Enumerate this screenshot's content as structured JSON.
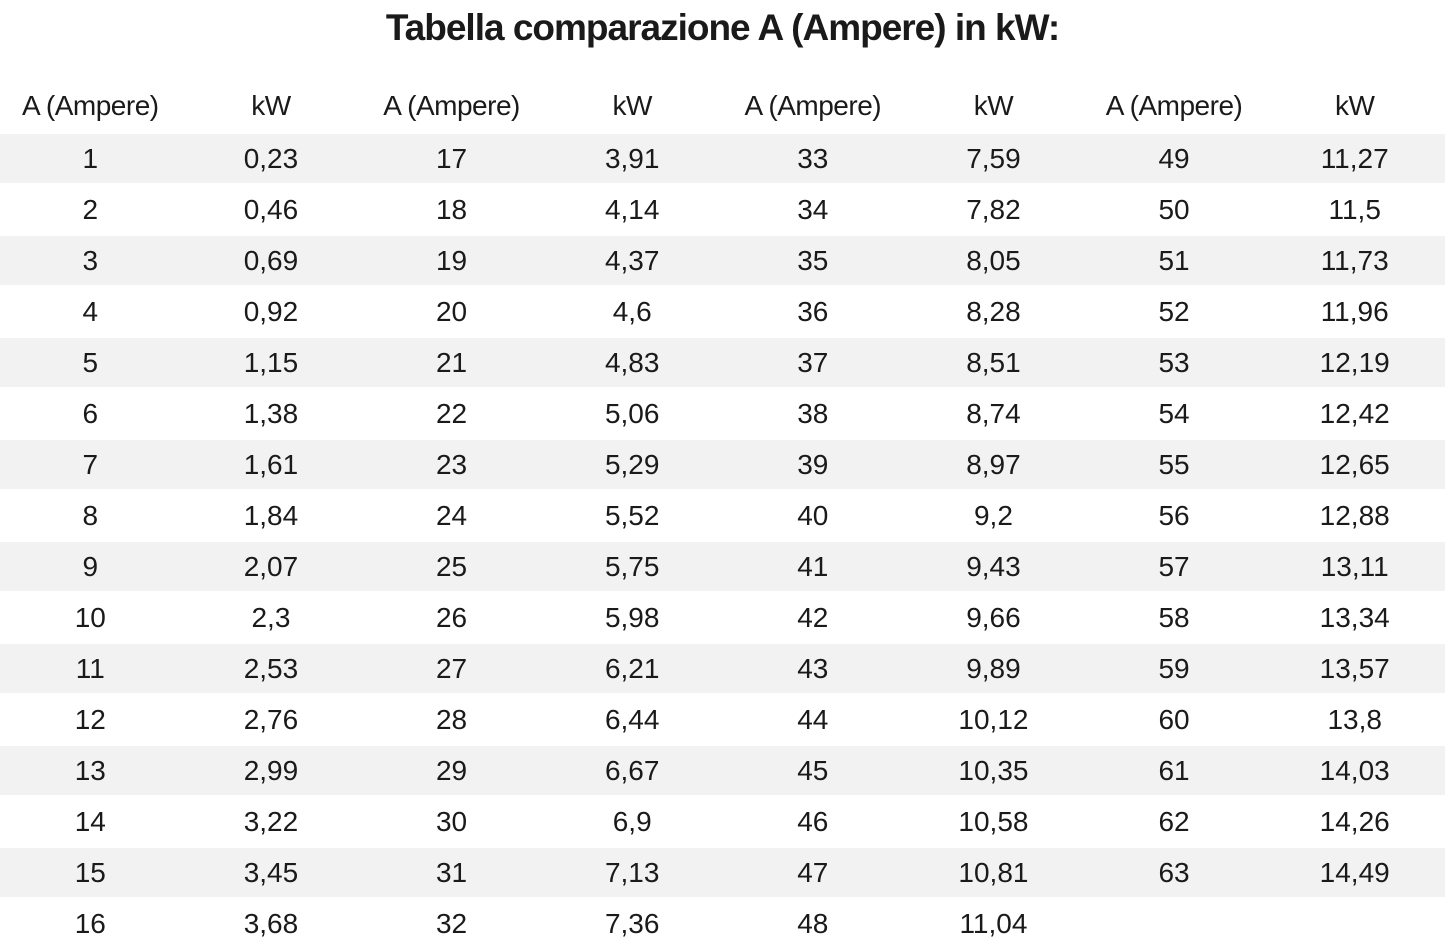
{
  "title": "Tabella comparazione A (Ampere) in kW:",
  "colors": {
    "stripe": "#f2f2f2",
    "background": "#ffffff",
    "text": "#1a1a1a"
  },
  "chart_data": {
    "type": "table",
    "title": "Tabella comparazione A (Ampere) in kW:",
    "columns": [
      "A (Ampere)",
      "kW",
      "A (Ampere)",
      "kW",
      "A (Ampere)",
      "kW",
      "A (Ampere)",
      "kW"
    ],
    "decimal_separator": ",",
    "conversion_factor_kw_per_ampere": 0.23,
    "layout": "zebra-striped, 4 ampere/kW column pairs, no vertical gridlines",
    "rows": [
      [
        "1",
        "0,23",
        "17",
        "3,91",
        "33",
        "7,59",
        "49",
        "11,27"
      ],
      [
        "2",
        "0,46",
        "18",
        "4,14",
        "34",
        "7,82",
        "50",
        "11,5"
      ],
      [
        "3",
        "0,69",
        "19",
        "4,37",
        "35",
        "8,05",
        "51",
        "11,73"
      ],
      [
        "4",
        "0,92",
        "20",
        "4,6",
        "36",
        "8,28",
        "52",
        "11,96"
      ],
      [
        "5",
        "1,15",
        "21",
        "4,83",
        "37",
        "8,51",
        "53",
        "12,19"
      ],
      [
        "6",
        "1,38",
        "22",
        "5,06",
        "38",
        "8,74",
        "54",
        "12,42"
      ],
      [
        "7",
        "1,61",
        "23",
        "5,29",
        "39",
        "8,97",
        "55",
        "12,65"
      ],
      [
        "8",
        "1,84",
        "24",
        "5,52",
        "40",
        "9,2",
        "56",
        "12,88"
      ],
      [
        "9",
        "2,07",
        "25",
        "5,75",
        "41",
        "9,43",
        "57",
        "13,11"
      ],
      [
        "10",
        "2,3",
        "26",
        "5,98",
        "42",
        "9,66",
        "58",
        "13,34"
      ],
      [
        "11",
        "2,53",
        "27",
        "6,21",
        "43",
        "9,89",
        "59",
        "13,57"
      ],
      [
        "12",
        "2,76",
        "28",
        "6,44",
        "44",
        "10,12",
        "60",
        "13,8"
      ],
      [
        "13",
        "2,99",
        "29",
        "6,67",
        "45",
        "10,35",
        "61",
        "14,03"
      ],
      [
        "14",
        "3,22",
        "30",
        "6,9",
        "46",
        "10,58",
        "62",
        "14,26"
      ],
      [
        "15",
        "3,45",
        "31",
        "7,13",
        "47",
        "10,81",
        "63",
        "14,49"
      ],
      [
        "16",
        "3,68",
        "32",
        "7,36",
        "48",
        "11,04",
        "",
        ""
      ]
    ]
  }
}
